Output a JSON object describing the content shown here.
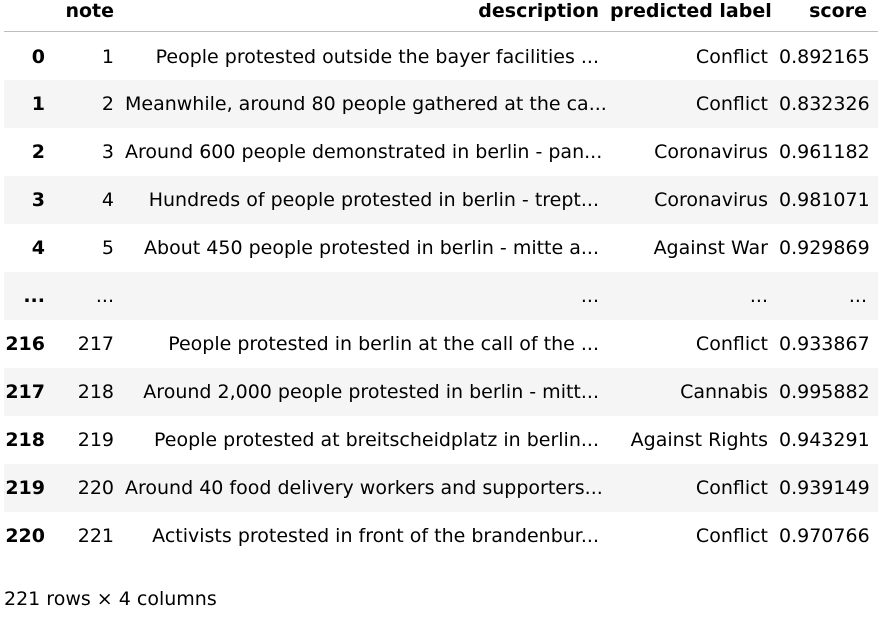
{
  "table": {
    "columns": [
      "",
      "note",
      "description",
      "predicted label",
      "score"
    ],
    "rows": [
      [
        "0",
        "1",
        "People protested outside the bayer facilities ...",
        "Conflict",
        "0.892165"
      ],
      [
        "1",
        "2",
        "Meanwhile, around 80 people gathered at the ca...",
        "Conflict",
        "0.832326"
      ],
      [
        "2",
        "3",
        "Around 600 people demonstrated in berlin - pan...",
        "Coronavirus",
        "0.961182"
      ],
      [
        "3",
        "4",
        "Hundreds of people protested in berlin - trept...",
        "Coronavirus",
        "0.981071"
      ],
      [
        "4",
        "5",
        "About 450 people protested in berlin - mitte a...",
        "Against War",
        "0.929869"
      ],
      [
        "...",
        "...",
        "...",
        "...",
        "..."
      ],
      [
        "216",
        "217",
        "People protested in berlin at the call of the ...",
        "Conflict",
        "0.933867"
      ],
      [
        "217",
        "218",
        "Around 2,000 people protested in berlin - mitt...",
        "Cannabis",
        "0.995882"
      ],
      [
        "218",
        "219",
        "People protested at breitscheidplatz in berlin...",
        "Against Rights",
        "0.943291"
      ],
      [
        "219",
        "220",
        "Around 40 food delivery workers and supporters...",
        "Conflict",
        "0.939149"
      ],
      [
        "220",
        "221",
        "Activists protested in front of the brandenbur...",
        "Conflict",
        "0.970766"
      ]
    ]
  },
  "caption": "221 rows × 4 columns"
}
